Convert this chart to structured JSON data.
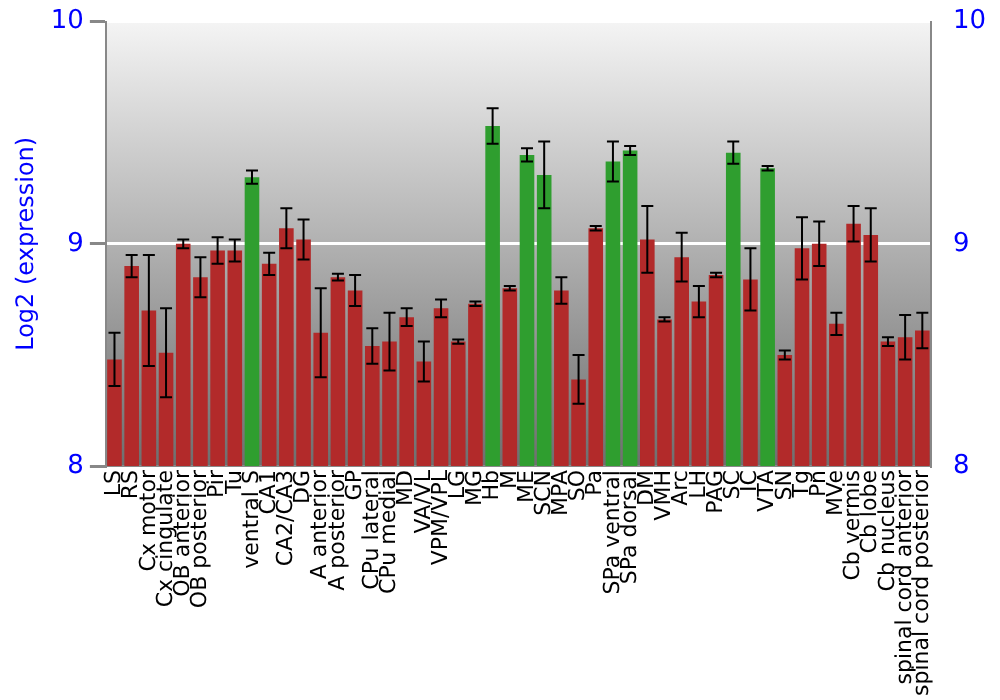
{
  "chart_data": {
    "type": "bar",
    "ylabel": "Log2 (expression)",
    "categories": [
      "LS",
      "RS",
      "Cx motor",
      "Cx cingulate",
      "OB anterior",
      "OB posterior",
      "Pir",
      "Tu",
      "ventral S",
      "CA1",
      "CA2/CA3",
      "DG",
      "A anterior",
      "A posterior",
      "GP",
      "CPu lateral",
      "CPu medial",
      "MD",
      "VA/VL",
      "VPM/VPL",
      "LG",
      "MG",
      "Hb",
      "M",
      "ME",
      "SCN",
      "MPA",
      "SO",
      "Pa",
      "SPa ventral",
      "SPa dorsal",
      "DM",
      "VMH",
      "Arc",
      "LH",
      "PAG",
      "SC",
      "IC",
      "VTA",
      "SN",
      "Tg",
      "Pn",
      "MVe",
      "Cb vermis",
      "Cb lobe",
      "Cb nucleus",
      "spinal cord anterior",
      "spinal cord posterior"
    ],
    "values": [
      8.48,
      8.9,
      8.7,
      8.51,
      9.0,
      8.85,
      8.97,
      8.97,
      9.3,
      8.91,
      9.07,
      9.02,
      8.6,
      8.85,
      8.79,
      8.54,
      8.56,
      8.67,
      8.47,
      8.71,
      8.56,
      8.73,
      9.53,
      8.8,
      9.4,
      9.31,
      8.79,
      8.39,
      9.07,
      9.37,
      9.42,
      9.02,
      8.66,
      8.94,
      8.74,
      8.86,
      9.41,
      8.84,
      9.34,
      8.5,
      8.98,
      9.0,
      8.64,
      9.09,
      9.04,
      8.56,
      8.58,
      8.61
    ],
    "errors": [
      0.12,
      0.05,
      0.25,
      0.2,
      0.02,
      0.09,
      0.06,
      0.05,
      0.03,
      0.05,
      0.09,
      0.09,
      0.2,
      0.015,
      0.07,
      0.08,
      0.13,
      0.04,
      0.09,
      0.04,
      0.01,
      0.01,
      0.08,
      0.01,
      0.03,
      0.15,
      0.06,
      0.11,
      0.01,
      0.09,
      0.02,
      0.15,
      0.01,
      0.11,
      0.07,
      0.01,
      0.05,
      0.14,
      0.01,
      0.02,
      0.14,
      0.1,
      0.05,
      0.08,
      0.12,
      0.02,
      0.1,
      0.08
    ],
    "colors": [
      "#b22a2a",
      "#b22a2a",
      "#b22a2a",
      "#b22a2a",
      "#b22a2a",
      "#b22a2a",
      "#b22a2a",
      "#b22a2a",
      "#2f9e2f",
      "#b22a2a",
      "#b22a2a",
      "#b22a2a",
      "#b22a2a",
      "#b22a2a",
      "#b22a2a",
      "#b22a2a",
      "#b22a2a",
      "#b22a2a",
      "#b22a2a",
      "#b22a2a",
      "#b22a2a",
      "#b22a2a",
      "#2f9e2f",
      "#b22a2a",
      "#2f9e2f",
      "#2f9e2f",
      "#b22a2a",
      "#b22a2a",
      "#b22a2a",
      "#2f9e2f",
      "#2f9e2f",
      "#b22a2a",
      "#b22a2a",
      "#b22a2a",
      "#b22a2a",
      "#b22a2a",
      "#2f9e2f",
      "#b22a2a",
      "#2f9e2f",
      "#b22a2a",
      "#b22a2a",
      "#b22a2a",
      "#b22a2a",
      "#b22a2a",
      "#b22a2a",
      "#b22a2a",
      "#b22a2a",
      "#b22a2a"
    ],
    "ylim": [
      8,
      10
    ],
    "yticks": [
      8,
      9,
      10
    ],
    "y2lim": [
      8,
      10
    ],
    "y2ticks": [
      8,
      9,
      10
    ],
    "grid": "y",
    "legend": false
  }
}
